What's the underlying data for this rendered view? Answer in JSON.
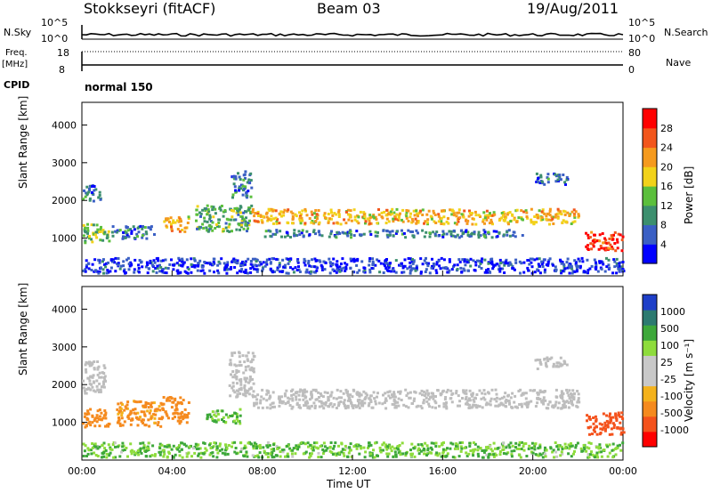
{
  "header": {
    "station": "Stokkseyri (fitACF)",
    "beam": "Beam 03",
    "date": "19/Aug/2011"
  },
  "noise_panel": {
    "left_label": "N.Sky",
    "right_label": "N.Search",
    "right_label_style": "dotted",
    "left_ticks": [
      "10^5",
      "10^0"
    ],
    "right_ticks": [
      "10^5",
      "10^0"
    ]
  },
  "freq_panel": {
    "left_label_line1": "Freq.",
    "left_label_line2": "[MHz]",
    "right_label": "Nave",
    "right_label_style": "dotted",
    "left_ticks": [
      "18",
      "8"
    ],
    "right_ticks": [
      "80",
      "0"
    ]
  },
  "cpid": {
    "label": "CPID",
    "program": "normal 150"
  },
  "colors": {
    "power_scale": [
      "#0000ff",
      "#3a5fc4",
      "#3c8f6e",
      "#5bbf3c",
      "#f2d21a",
      "#f59a1e",
      "#f2561c",
      "#ff0000"
    ],
    "velocity_scale": [
      "#1e3fc8",
      "#2c7a70",
      "#3da83a",
      "#8edc3c",
      "#c8c8c8",
      "#c8c8c8",
      "#f4b21c",
      "#f58a1e",
      "#f4521c",
      "#ff0000"
    ],
    "ground_scatter": "#bdbdbd"
  },
  "chart_data": [
    {
      "type": "heatmap",
      "title": "",
      "xlabel": "",
      "ylabel": "Slant Range [km]",
      "xlim": [
        "00:00",
        "24:00"
      ],
      "ylim": [
        0,
        4600
      ],
      "x_ticks": [
        "00:00",
        "04:00",
        "08:00",
        "12:00",
        "16:00",
        "20:00",
        "00:00"
      ],
      "y_ticks": [
        "1000",
        "2000",
        "3000",
        "4000"
      ],
      "colorbar": {
        "label": "Power [dB]",
        "range": [
          0,
          32
        ],
        "ticks": [
          "4",
          "8",
          "12",
          "16",
          "20",
          "24",
          "28"
        ]
      },
      "features": [
        {
          "start_hour": 0.0,
          "end_hour": 1.2,
          "range_km": [
            900,
            1400
          ],
          "value_db": 14
        },
        {
          "start_hour": 0.0,
          "end_hour": 0.8,
          "range_km": [
            2000,
            2450
          ],
          "value_db": 8
        },
        {
          "start_hour": 1.3,
          "end_hour": 3.2,
          "range_km": [
            1000,
            1350
          ],
          "value_db": 8
        },
        {
          "start_hour": 3.6,
          "end_hour": 4.7,
          "range_km": [
            1200,
            1600
          ],
          "value_db": 20
        },
        {
          "start_hour": 5.0,
          "end_hour": 7.5,
          "range_km": [
            1200,
            1900
          ],
          "value_db": 12
        },
        {
          "start_hour": 6.6,
          "end_hour": 7.5,
          "range_km": [
            2100,
            2800
          ],
          "value_db": 8
        },
        {
          "start_hour": 7.5,
          "end_hour": 22.0,
          "range_km": [
            1400,
            1800
          ],
          "value_db": 20
        },
        {
          "start_hour": 8.0,
          "end_hour": 19.5,
          "range_km": [
            1050,
            1250
          ],
          "value_db": 8
        },
        {
          "start_hour": 20.0,
          "end_hour": 21.5,
          "range_km": [
            2450,
            2750
          ],
          "value_db": 8
        },
        {
          "start_hour": 22.3,
          "end_hour": 24.0,
          "range_km": [
            700,
            1200
          ],
          "value_db": 28
        },
        {
          "start_hour": 0.0,
          "end_hour": 24.0,
          "range_km": [
            100,
            500
          ],
          "value_db": 4
        }
      ]
    },
    {
      "type": "heatmap",
      "title": "",
      "xlabel": "Time UT",
      "ylabel": "Slant Range [km]",
      "xlim": [
        "00:00",
        "24:00"
      ],
      "ylim": [
        0,
        4600
      ],
      "x_ticks": [
        "00:00",
        "04:00",
        "08:00",
        "12:00",
        "16:00",
        "20:00",
        "00:00"
      ],
      "y_ticks": [
        "1000",
        "2000",
        "3000",
        "4000"
      ],
      "colorbar": {
        "label": "Velocity [m s⁻¹]",
        "ticks": [
          "1000",
          "500",
          "100",
          "25",
          "-25",
          "-100",
          "-500",
          "-1000"
        ]
      },
      "features": [
        {
          "start_hour": 0.0,
          "end_hour": 1.2,
          "range_km": [
            900,
            1400
          ],
          "velocity_ms": -200
        },
        {
          "start_hour": 0.0,
          "end_hour": 1.0,
          "range_km": [
            1800,
            2700
          ],
          "velocity_ms": 0,
          "ground_scatter": true
        },
        {
          "start_hour": 1.5,
          "end_hour": 3.5,
          "range_km": [
            900,
            1600
          ],
          "velocity_ms": -150
        },
        {
          "start_hour": 3.5,
          "end_hour": 4.7,
          "range_km": [
            1000,
            1700
          ],
          "velocity_ms": -300
        },
        {
          "start_hour": 5.5,
          "end_hour": 7.0,
          "range_km": [
            1000,
            1400
          ],
          "velocity_ms": 100
        },
        {
          "start_hour": 6.5,
          "end_hour": 7.6,
          "range_km": [
            1700,
            2900
          ],
          "velocity_ms": 0,
          "ground_scatter": true
        },
        {
          "start_hour": 7.5,
          "end_hour": 22.0,
          "range_km": [
            1400,
            1900
          ],
          "velocity_ms": 0,
          "ground_scatter": true
        },
        {
          "start_hour": 20.0,
          "end_hour": 21.5,
          "range_km": [
            2450,
            2750
          ],
          "velocity_ms": 0,
          "ground_scatter": true
        },
        {
          "start_hour": 22.3,
          "end_hour": 24.0,
          "range_km": [
            700,
            1300
          ],
          "velocity_ms": -700
        },
        {
          "start_hour": 0.0,
          "end_hour": 24.0,
          "range_km": [
            100,
            500
          ],
          "velocity_ms": 100
        }
      ]
    }
  ]
}
